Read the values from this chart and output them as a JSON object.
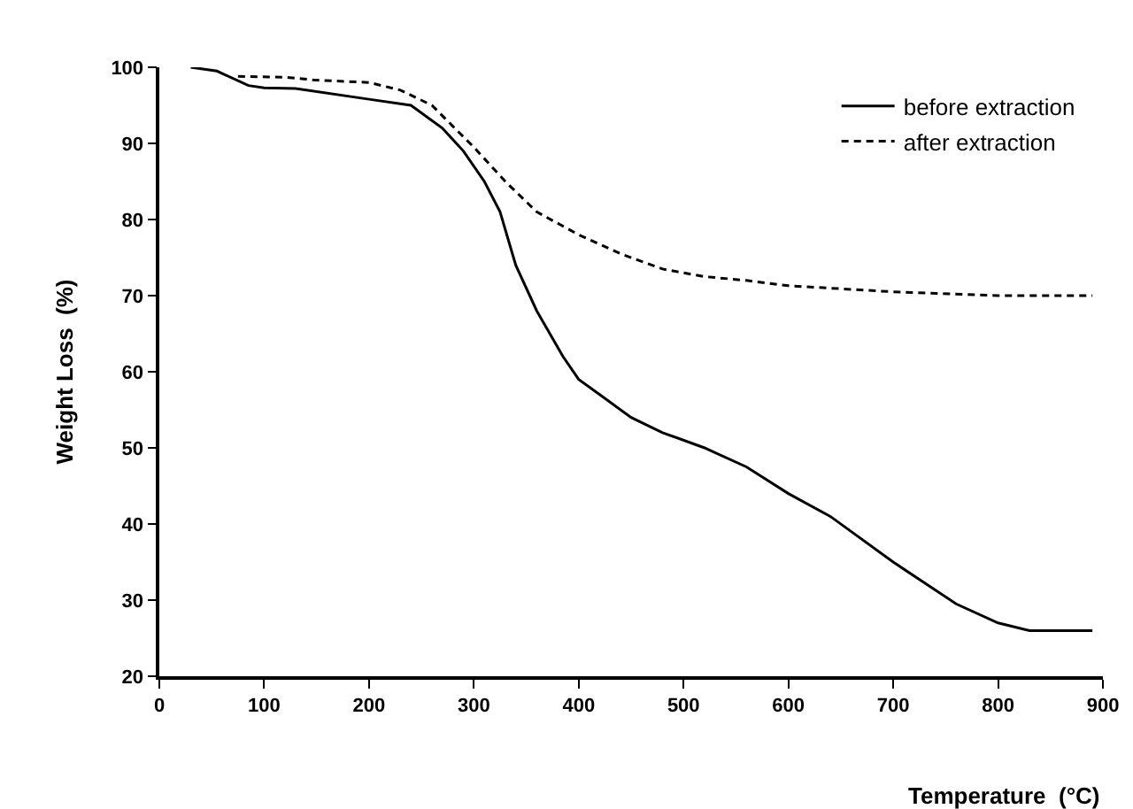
{
  "chart_data": {
    "type": "line",
    "xlabel": "Temperature  (°C)",
    "ylabel": "Weight Loss  (%)",
    "xlim": [
      0,
      900
    ],
    "xticks": [
      0,
      100,
      200,
      300,
      400,
      500,
      600,
      700,
      800,
      900
    ],
    "ylim": [
      20,
      100
    ],
    "yticks": [
      20,
      30,
      40,
      50,
      60,
      70,
      80,
      90,
      100
    ],
    "grid": false,
    "legend": "top right",
    "marker": "none",
    "series": [
      {
        "name": "before extraction",
        "color": "#000000",
        "line_style": "solid",
        "x": [
          30,
          55,
          85,
          100,
          130,
          200,
          240,
          270,
          290,
          310,
          325,
          340,
          360,
          385,
          400,
          420,
          450,
          480,
          520,
          560,
          600,
          640,
          700,
          760,
          800,
          830,
          890
        ],
        "values": [
          100,
          99.5,
          97.6,
          97.3,
          97.2,
          95.8,
          95,
          92,
          89,
          85,
          81,
          74,
          68,
          62,
          59,
          57,
          54,
          52,
          50,
          47.5,
          44,
          41,
          35,
          29.5,
          27,
          26,
          26
        ]
      },
      {
        "name": "after extraction",
        "color": "#000000",
        "line_style": "dashed",
        "x": [
          75,
          120,
          150,
          200,
          230,
          260,
          300,
          330,
          360,
          400,
          440,
          480,
          520,
          560,
          600,
          700,
          800,
          890
        ],
        "values": [
          98.8,
          98.7,
          98.3,
          98,
          97,
          95,
          89.5,
          85,
          81,
          78,
          75.5,
          73.5,
          72.5,
          72,
          71.3,
          70.5,
          70,
          70
        ]
      }
    ]
  }
}
